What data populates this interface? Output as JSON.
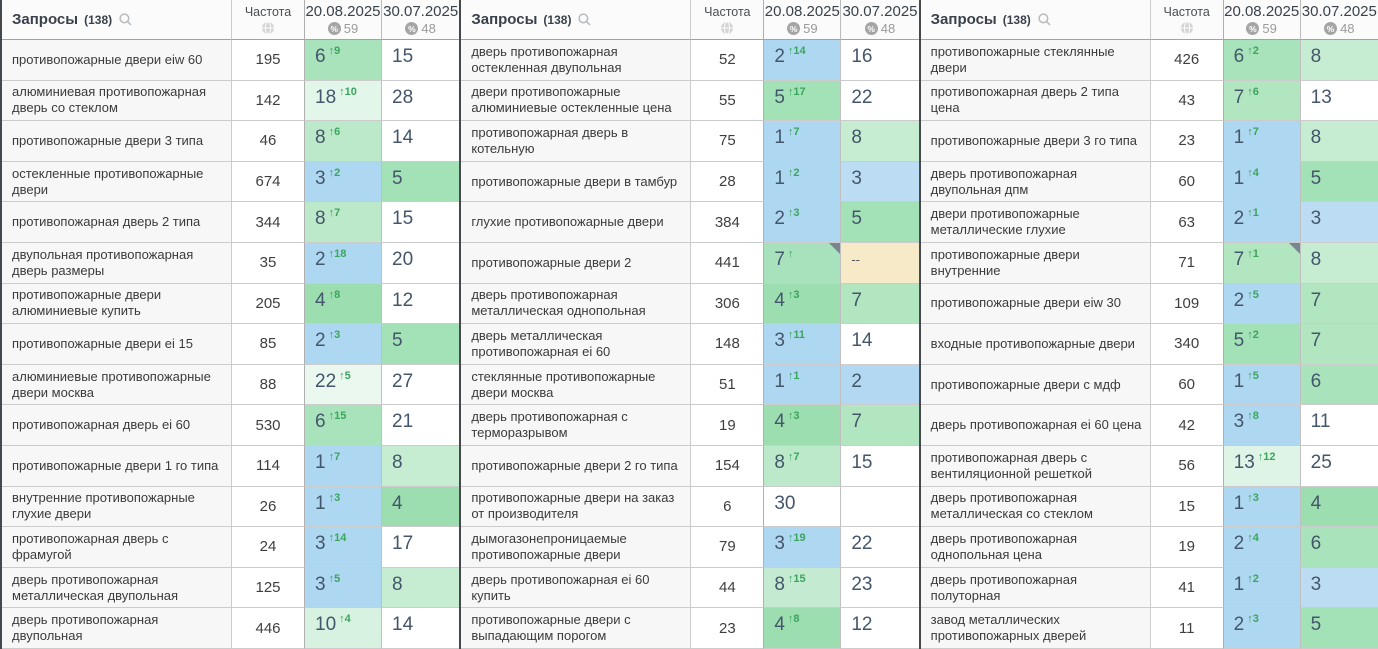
{
  "panels": [
    {
      "header": {
        "queries_label": "Запросы",
        "count": "(138)",
        "freq_label": "Частота",
        "date1": "20.08.2025",
        "date1_metric": "59",
        "date2": "30.07.2025",
        "date2_metric": "48"
      },
      "rows": [
        {
          "query": "противопожарные двери eiw 60",
          "freq": "195",
          "cur": "6",
          "delta": "↑9",
          "cur_bg": "#a9e3bb",
          "prev": "15",
          "prev_bg": "#ffffff",
          "marker": false
        },
        {
          "query": "алюминиевая противопожарная дверь со стеклом",
          "freq": "142",
          "cur": "18",
          "delta": "↑10",
          "cur_bg": "#e3f6ea",
          "prev": "28",
          "prev_bg": "#ffffff",
          "marker": false
        },
        {
          "query": "противопожарные двери 3 типа",
          "freq": "46",
          "cur": "8",
          "delta": "↑6",
          "cur_bg": "#bce9c9",
          "prev": "14",
          "prev_bg": "#ffffff",
          "marker": false
        },
        {
          "query": "остекленные противопожарные двери",
          "freq": "674",
          "cur": "3",
          "delta": "↑2",
          "cur_bg": "#aed7f1",
          "prev": "5",
          "prev_bg": "#a3e1b6",
          "marker": false
        },
        {
          "query": "противопожарная дверь 2 типа",
          "freq": "344",
          "cur": "8",
          "delta": "↑7",
          "cur_bg": "#bce9c9",
          "prev": "15",
          "prev_bg": "#ffffff",
          "marker": false
        },
        {
          "query": "двупольная противопожарная дверь размеры",
          "freq": "35",
          "cur": "2",
          "delta": "↑18",
          "cur_bg": "#aed7f1",
          "prev": "20",
          "prev_bg": "#ffffff",
          "marker": false
        },
        {
          "query": "противопожарные двери алюминиевые купить",
          "freq": "205",
          "cur": "4",
          "delta": "↑8",
          "cur_bg": "#9cdeb0",
          "prev": "12",
          "prev_bg": "#ffffff",
          "marker": false
        },
        {
          "query": "противопожарные двери ei 15",
          "freq": "85",
          "cur": "2",
          "delta": "↑3",
          "cur_bg": "#aed7f1",
          "prev": "5",
          "prev_bg": "#a3e1b6",
          "marker": false
        },
        {
          "query": "алюминиевые противопожарные двери москва",
          "freq": "88",
          "cur": "22",
          "delta": "↑5",
          "cur_bg": "#ebf8f0",
          "prev": "27",
          "prev_bg": "#ffffff",
          "marker": false
        },
        {
          "query": "противопожарная дверь ei 60",
          "freq": "530",
          "cur": "6",
          "delta": "↑15",
          "cur_bg": "#a9e3bb",
          "prev": "21",
          "prev_bg": "#ffffff",
          "marker": false
        },
        {
          "query": "противопожарные двери 1 го типа",
          "freq": "114",
          "cur": "1",
          "delta": "↑7",
          "cur_bg": "#aed7f1",
          "prev": "8",
          "prev_bg": "#c6ecd1",
          "marker": false
        },
        {
          "query": "внутренние противопожарные глухие двери",
          "freq": "26",
          "cur": "1",
          "delta": "↑3",
          "cur_bg": "#aed7f1",
          "prev": "4",
          "prev_bg": "#9cdeb0",
          "marker": false
        },
        {
          "query": "противопожарная дверь с фрамугой",
          "freq": "24",
          "cur": "3",
          "delta": "↑14",
          "cur_bg": "#aed7f1",
          "prev": "17",
          "prev_bg": "#ffffff",
          "marker": false
        },
        {
          "query": "дверь противопожарная металлическая двупольная",
          "freq": "125",
          "cur": "3",
          "delta": "↑5",
          "cur_bg": "#aed7f1",
          "prev": "8",
          "prev_bg": "#c6ecd1",
          "marker": false
        },
        {
          "query": "дверь противопожарная двупольная",
          "freq": "446",
          "cur": "10",
          "delta": "↑4",
          "cur_bg": "#d7f2e0",
          "prev": "14",
          "prev_bg": "#ffffff",
          "marker": false
        }
      ]
    },
    {
      "header": {
        "queries_label": "Запросы",
        "count": "(138)",
        "freq_label": "Частота",
        "date1": "20.08.2025",
        "date1_metric": "59",
        "date2": "30.07.2025",
        "date2_metric": "48"
      },
      "rows": [
        {
          "query": "дверь противопожарная остекленная двупольная",
          "freq": "52",
          "cur": "2",
          "delta": "↑14",
          "cur_bg": "#aed7f1",
          "prev": "16",
          "prev_bg": "#ffffff",
          "marker": false
        },
        {
          "query": "двери противопожарные алюминиевые остекленные цена",
          "freq": "55",
          "cur": "5",
          "delta": "↑17",
          "cur_bg": "#a3e1b6",
          "prev": "22",
          "prev_bg": "#ffffff",
          "marker": false
        },
        {
          "query": "противопожарная дверь в котельную",
          "freq": "75",
          "cur": "1",
          "delta": "↑7",
          "cur_bg": "#aed7f1",
          "prev": "8",
          "prev_bg": "#c6ecd1",
          "marker": false
        },
        {
          "query": "противопожарные двери в тамбур",
          "freq": "28",
          "cur": "1",
          "delta": "↑2",
          "cur_bg": "#aed7f1",
          "prev": "3",
          "prev_bg": "#bcdcf3",
          "marker": false
        },
        {
          "query": "глухие противопожарные двери",
          "freq": "384",
          "cur": "2",
          "delta": "↑3",
          "cur_bg": "#aed7f1",
          "prev": "5",
          "prev_bg": "#a3e1b6",
          "marker": false
        },
        {
          "query": "противопожарные двери 2",
          "freq": "441",
          "cur": "7",
          "delta": "↑",
          "cur_bg": "#a8e2bd",
          "prev": "--",
          "prev_bg": "#f6eac8",
          "marker": true
        },
        {
          "query": "дверь противопожарная металлическая однопольная",
          "freq": "306",
          "cur": "4",
          "delta": "↑3",
          "cur_bg": "#9cdeb0",
          "prev": "7",
          "prev_bg": "#b2e6c1",
          "marker": false
        },
        {
          "query": "дверь металлическая противопожарная ei 60",
          "freq": "148",
          "cur": "3",
          "delta": "↑11",
          "cur_bg": "#aed7f1",
          "prev": "14",
          "prev_bg": "#ffffff",
          "marker": false
        },
        {
          "query": "стеклянные противопожарные двери москва",
          "freq": "51",
          "cur": "1",
          "delta": "↑1",
          "cur_bg": "#aed7f1",
          "prev": "2",
          "prev_bg": "#b3d9f2",
          "marker": false
        },
        {
          "query": "дверь противопожарная с терморазрывом",
          "freq": "19",
          "cur": "4",
          "delta": "↑3",
          "cur_bg": "#9cdeb0",
          "prev": "7",
          "prev_bg": "#b2e6c1",
          "marker": false
        },
        {
          "query": "противопожарные двери 2 го типа",
          "freq": "154",
          "cur": "8",
          "delta": "↑7",
          "cur_bg": "#bce9c9",
          "prev": "15",
          "prev_bg": "#ffffff",
          "marker": false
        },
        {
          "query": "противопожарные двери на заказ от производителя",
          "freq": "6",
          "cur": "30",
          "delta": "",
          "cur_bg": "#ffffff",
          "prev": "",
          "prev_bg": "#ffffff",
          "marker": false
        },
        {
          "query": "дымогазонепроницаемые противопожарные двери",
          "freq": "79",
          "cur": "3",
          "delta": "↑19",
          "cur_bg": "#aed7f1",
          "prev": "22",
          "prev_bg": "#ffffff",
          "marker": false
        },
        {
          "query": "дверь противопожарная ei 60 купить",
          "freq": "44",
          "cur": "8",
          "delta": "↑15",
          "cur_bg": "#c4ebd1",
          "prev": "23",
          "prev_bg": "#ffffff",
          "marker": false
        },
        {
          "query": "противопожарные двери с выпадающим порогом",
          "freq": "23",
          "cur": "4",
          "delta": "↑8",
          "cur_bg": "#9cdeb0",
          "prev": "12",
          "prev_bg": "#ffffff",
          "marker": false
        }
      ]
    },
    {
      "header": {
        "queries_label": "Запросы",
        "count": "(138)",
        "freq_label": "Частота",
        "date1": "20.08.2025",
        "date1_metric": "59",
        "date2": "30.07.2025",
        "date2_metric": "48"
      },
      "rows": [
        {
          "query": "противопожарные стеклянные двери",
          "freq": "426",
          "cur": "6",
          "delta": "↑2",
          "cur_bg": "#a9e3bb",
          "prev": "8",
          "prev_bg": "#c6ecd1",
          "marker": false
        },
        {
          "query": "противопожарная дверь 2 типа цена",
          "freq": "43",
          "cur": "7",
          "delta": "↑6",
          "cur_bg": "#b2e6c1",
          "prev": "13",
          "prev_bg": "#ffffff",
          "marker": false
        },
        {
          "query": "противопожарные двери 3 го типа",
          "freq": "23",
          "cur": "1",
          "delta": "↑7",
          "cur_bg": "#aed7f1",
          "prev": "8",
          "prev_bg": "#c6ecd1",
          "marker": false
        },
        {
          "query": "дверь противопожарная двупольная дпм",
          "freq": "60",
          "cur": "1",
          "delta": "↑4",
          "cur_bg": "#aed7f1",
          "prev": "5",
          "prev_bg": "#a3e1b6",
          "marker": false
        },
        {
          "query": "двери противопожарные металлические глухие",
          "freq": "63",
          "cur": "2",
          "delta": "↑1",
          "cur_bg": "#aed7f1",
          "prev": "3",
          "prev_bg": "#bcdcf3",
          "marker": false
        },
        {
          "query": "противопожарные двери внутренние",
          "freq": "71",
          "cur": "7",
          "delta": "↑1",
          "cur_bg": "#b2e6c1",
          "prev": "8",
          "prev_bg": "#c6ecd1",
          "marker": true
        },
        {
          "query": "противопожарные двери eiw 30",
          "freq": "109",
          "cur": "2",
          "delta": "↑5",
          "cur_bg": "#aed7f1",
          "prev": "7",
          "prev_bg": "#b2e6c1",
          "marker": false
        },
        {
          "query": "входные противопожарные двери",
          "freq": "340",
          "cur": "5",
          "delta": "↑2",
          "cur_bg": "#a3e1b6",
          "prev": "7",
          "prev_bg": "#b2e6c1",
          "marker": false
        },
        {
          "query": "противопожарные двери с мдф",
          "freq": "60",
          "cur": "1",
          "delta": "↑5",
          "cur_bg": "#aed7f1",
          "prev": "6",
          "prev_bg": "#a9e3bb",
          "marker": false
        },
        {
          "query": "дверь противопожарная ei 60 цена",
          "freq": "42",
          "cur": "3",
          "delta": "↑8",
          "cur_bg": "#aed7f1",
          "prev": "11",
          "prev_bg": "#ffffff",
          "marker": false
        },
        {
          "query": "противопожарная дверь с вентиляционной решеткой",
          "freq": "56",
          "cur": "13",
          "delta": "↑12",
          "cur_bg": "#def4e6",
          "prev": "25",
          "prev_bg": "#ffffff",
          "marker": false
        },
        {
          "query": "дверь противопожарная металлическая со стеклом",
          "freq": "15",
          "cur": "1",
          "delta": "↑3",
          "cur_bg": "#aed7f1",
          "prev": "4",
          "prev_bg": "#9cdeb0",
          "marker": false
        },
        {
          "query": "дверь противопожарная однопольная цена",
          "freq": "19",
          "cur": "2",
          "delta": "↑4",
          "cur_bg": "#aed7f1",
          "prev": "6",
          "prev_bg": "#a9e3bb",
          "marker": false
        },
        {
          "query": "дверь противопожарная полуторная",
          "freq": "41",
          "cur": "1",
          "delta": "↑2",
          "cur_bg": "#aed7f1",
          "prev": "3",
          "prev_bg": "#bcdcf3",
          "marker": false
        },
        {
          "query": "завод металлических противопожарных дверей",
          "freq": "11",
          "cur": "2",
          "delta": "↑3",
          "cur_bg": "#aed7f1",
          "prev": "5",
          "prev_bg": "#a3e1b6",
          "marker": false
        }
      ]
    }
  ],
  "status_cell_colors": {
    "top3_blue": "#aed7f1",
    "top10_green": "#a3e1b6",
    "light_green": "#def4e6",
    "no_position_beige": "#f6eac8"
  },
  "delta_color": "#3ba55d"
}
